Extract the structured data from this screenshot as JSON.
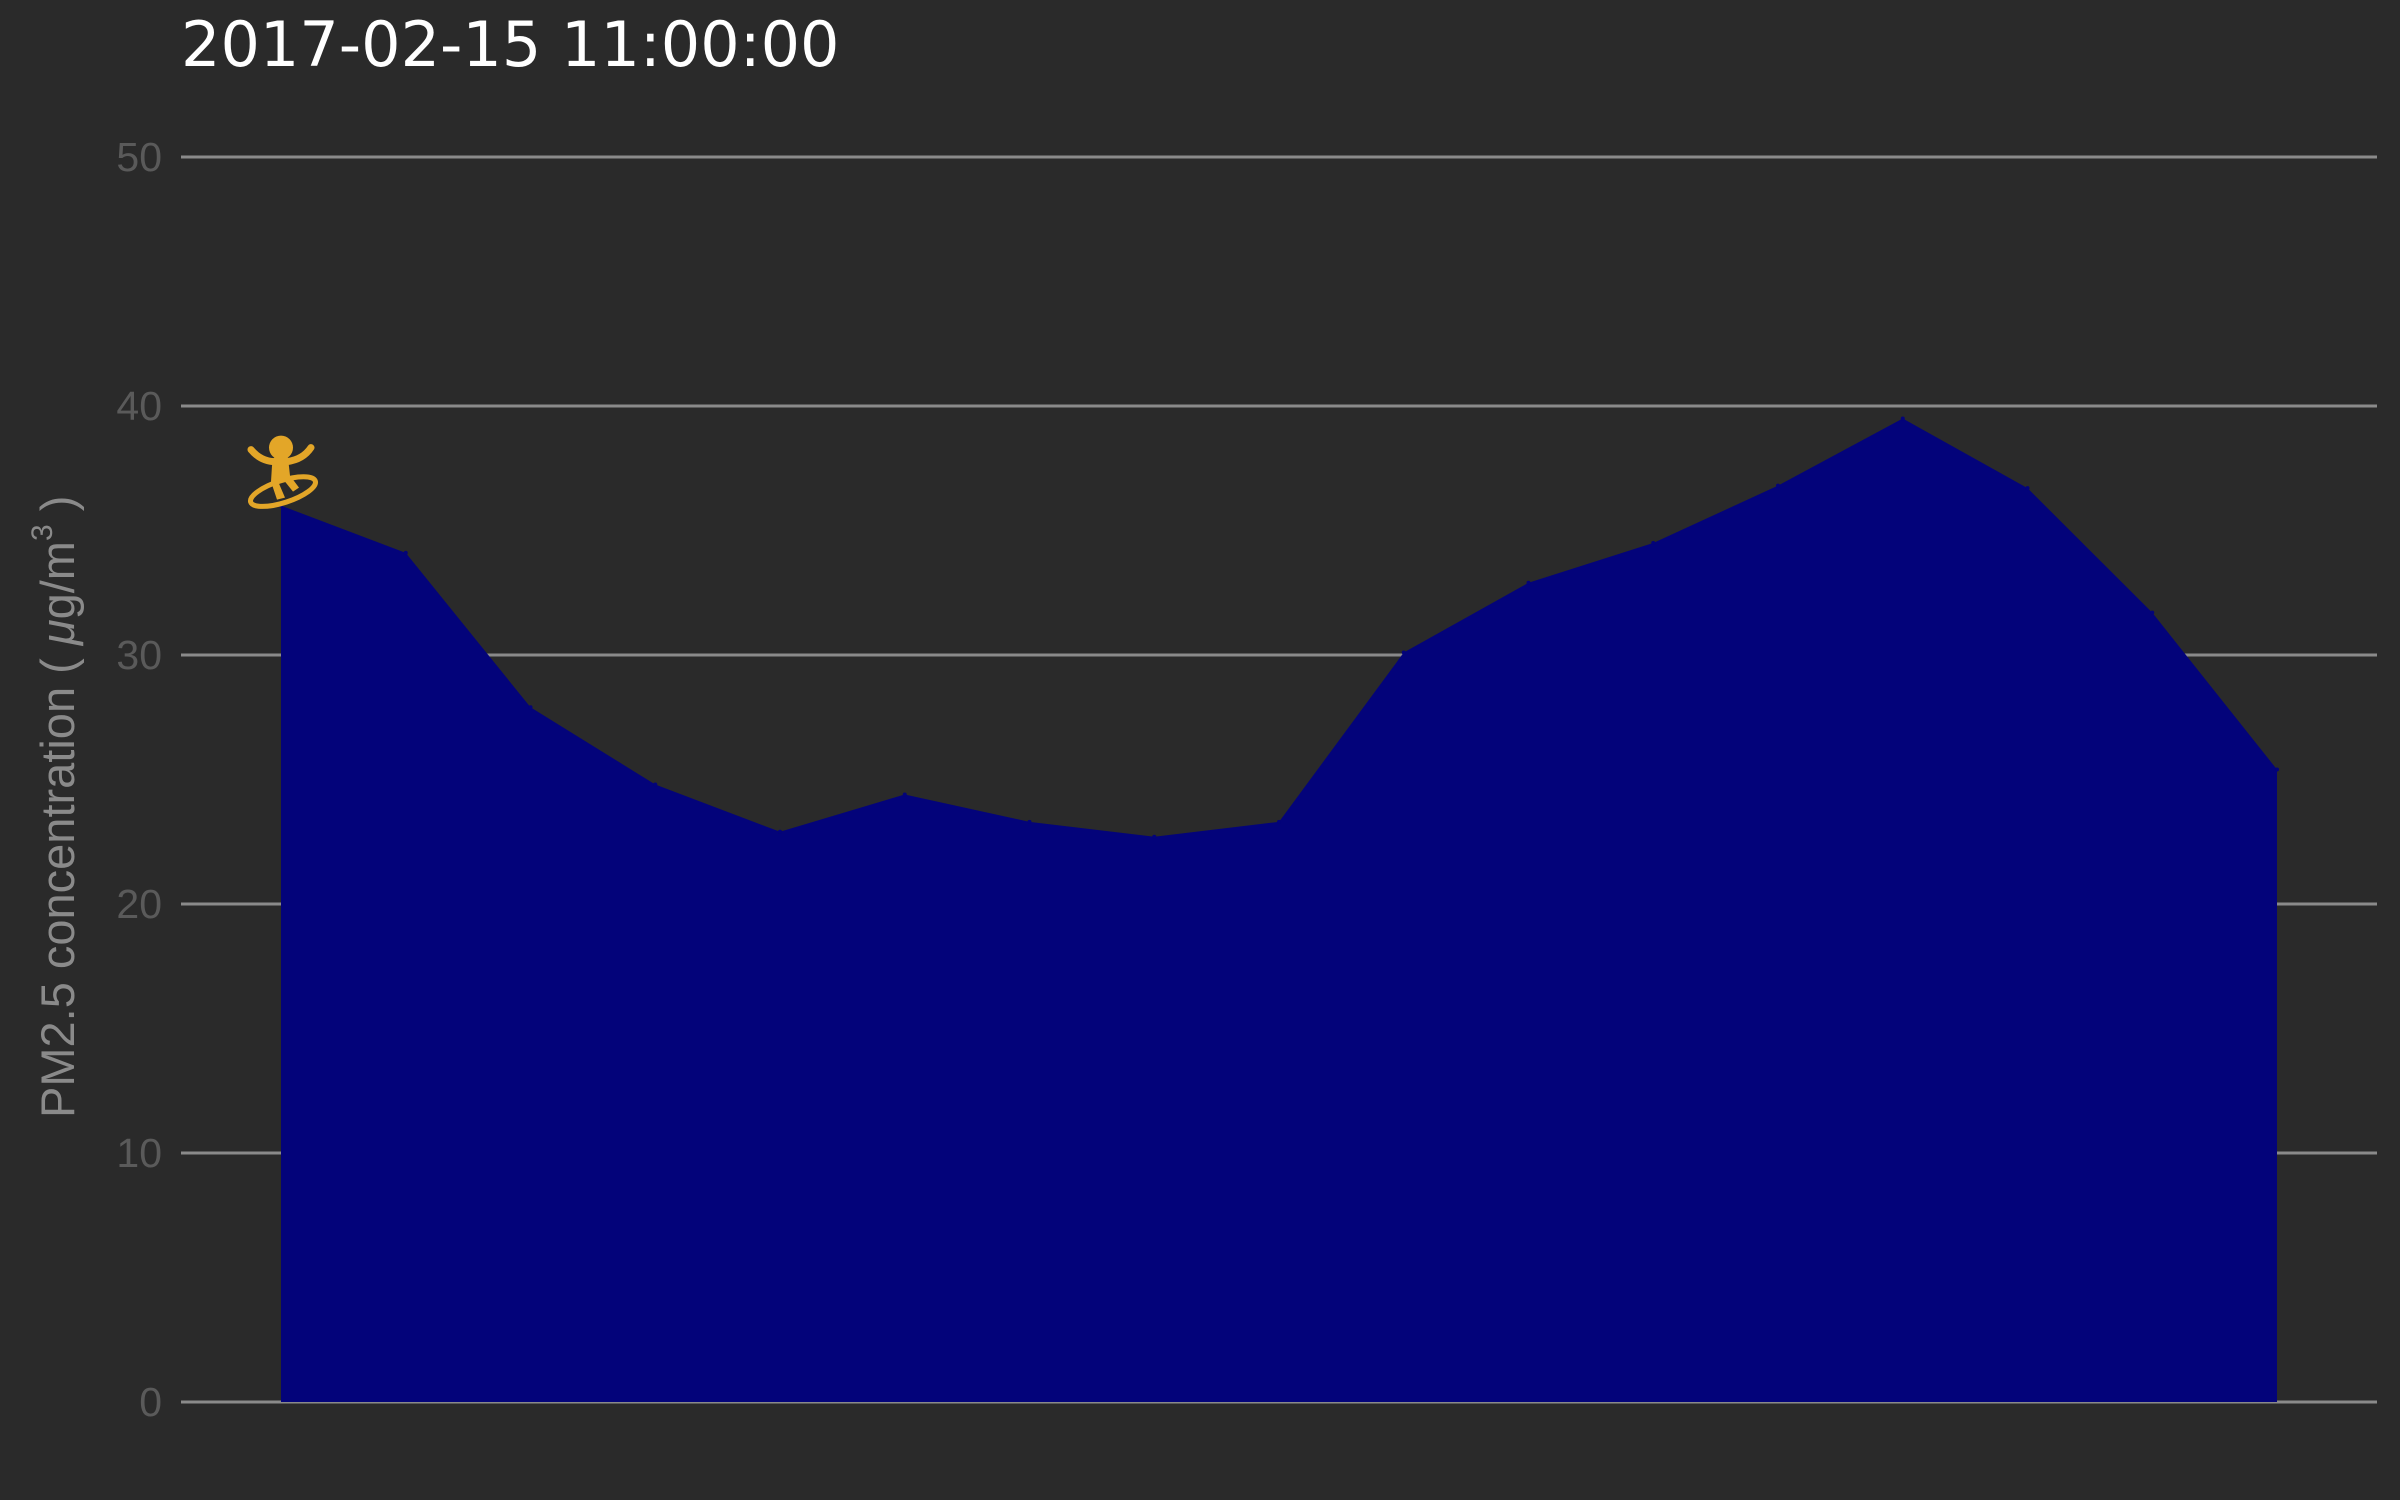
{
  "chart_data": {
    "type": "area",
    "title": "2017-02-15 11:00:00",
    "ylabel": "PM2.5 concentration ( μg/m³ )",
    "ylabel_parts": {
      "prefix": "PM2.5 concentration ( ",
      "mu": "μ",
      "unit": "g/m",
      "superscript": "3",
      "suffix": " )"
    },
    "xlabel": "",
    "ylim": [
      0,
      50
    ],
    "yticks": [
      0,
      10,
      20,
      30,
      40,
      50
    ],
    "grid": true,
    "legend": "none",
    "series": [
      {
        "values": [
          36.0,
          34.1,
          27.9,
          24.8,
          22.9,
          24.4,
          23.3,
          22.7,
          23.3,
          30.1,
          32.9,
          34.5,
          36.8,
          39.5,
          36.7,
          31.7,
          25.4
        ]
      }
    ],
    "marker_index": 0
  },
  "colors": {
    "background": "#2a2a2a",
    "area_fill": "#03037a",
    "grid": "#8a8a8a",
    "marker": "#e3a628"
  },
  "icons": {
    "marker": "running-figure-icon"
  }
}
